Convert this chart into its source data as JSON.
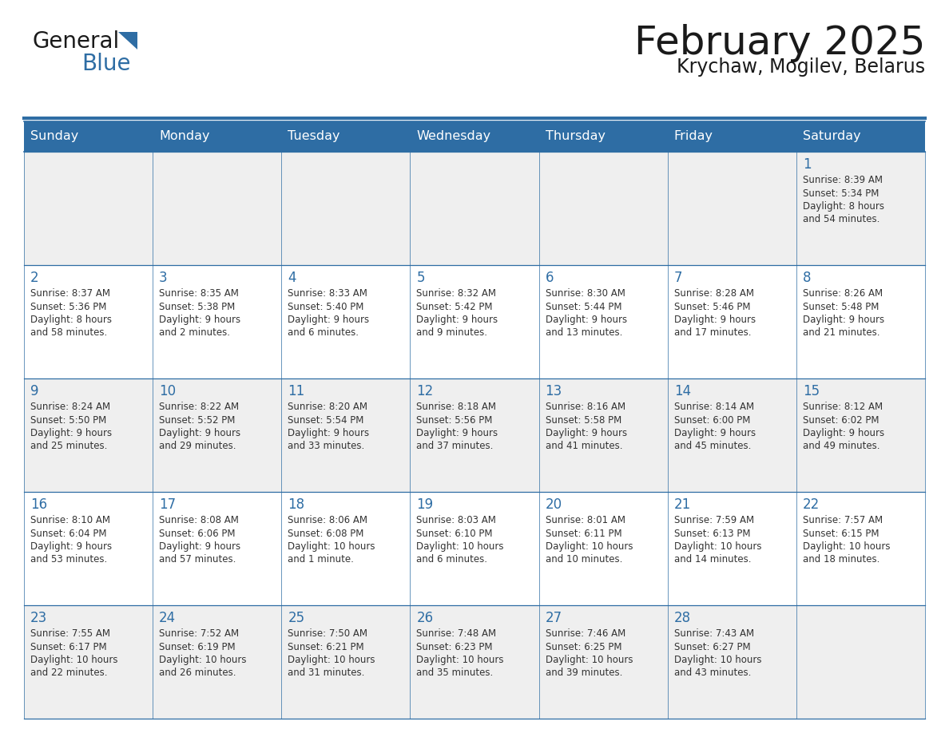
{
  "title": "February 2025",
  "subtitle": "Krychaw, Mogilev, Belarus",
  "header_bg": "#2E6DA4",
  "header_text": "#FFFFFF",
  "cell_bg_odd": "#EFEFEF",
  "cell_bg_even": "#FFFFFF",
  "border_color": "#2E6DA4",
  "days_of_week": [
    "Sunday",
    "Monday",
    "Tuesday",
    "Wednesday",
    "Thursday",
    "Friday",
    "Saturday"
  ],
  "title_color": "#1a1a1a",
  "subtitle_color": "#1a1a1a",
  "text_color": "#333333",
  "day_num_color": "#2E6DA4",
  "logo_general_color": "#1a1a1a",
  "logo_blue_color": "#2E6DA4",
  "logo_triangle_color": "#2E6DA4",
  "calendar": [
    [
      null,
      null,
      null,
      null,
      null,
      null,
      {
        "day": 1,
        "sunrise": "8:39 AM",
        "sunset": "5:34 PM",
        "daylight_h": "8 hours",
        "daylight_m": "54 minutes."
      }
    ],
    [
      {
        "day": 2,
        "sunrise": "8:37 AM",
        "sunset": "5:36 PM",
        "daylight_h": "8 hours",
        "daylight_m": "58 minutes."
      },
      {
        "day": 3,
        "sunrise": "8:35 AM",
        "sunset": "5:38 PM",
        "daylight_h": "9 hours",
        "daylight_m": "2 minutes."
      },
      {
        "day": 4,
        "sunrise": "8:33 AM",
        "sunset": "5:40 PM",
        "daylight_h": "9 hours",
        "daylight_m": "6 minutes."
      },
      {
        "day": 5,
        "sunrise": "8:32 AM",
        "sunset": "5:42 PM",
        "daylight_h": "9 hours",
        "daylight_m": "9 minutes."
      },
      {
        "day": 6,
        "sunrise": "8:30 AM",
        "sunset": "5:44 PM",
        "daylight_h": "9 hours",
        "daylight_m": "13 minutes."
      },
      {
        "day": 7,
        "sunrise": "8:28 AM",
        "sunset": "5:46 PM",
        "daylight_h": "9 hours",
        "daylight_m": "17 minutes."
      },
      {
        "day": 8,
        "sunrise": "8:26 AM",
        "sunset": "5:48 PM",
        "daylight_h": "9 hours",
        "daylight_m": "21 minutes."
      }
    ],
    [
      {
        "day": 9,
        "sunrise": "8:24 AM",
        "sunset": "5:50 PM",
        "daylight_h": "9 hours",
        "daylight_m": "25 minutes."
      },
      {
        "day": 10,
        "sunrise": "8:22 AM",
        "sunset": "5:52 PM",
        "daylight_h": "9 hours",
        "daylight_m": "29 minutes."
      },
      {
        "day": 11,
        "sunrise": "8:20 AM",
        "sunset": "5:54 PM",
        "daylight_h": "9 hours",
        "daylight_m": "33 minutes."
      },
      {
        "day": 12,
        "sunrise": "8:18 AM",
        "sunset": "5:56 PM",
        "daylight_h": "9 hours",
        "daylight_m": "37 minutes."
      },
      {
        "day": 13,
        "sunrise": "8:16 AM",
        "sunset": "5:58 PM",
        "daylight_h": "9 hours",
        "daylight_m": "41 minutes."
      },
      {
        "day": 14,
        "sunrise": "8:14 AM",
        "sunset": "6:00 PM",
        "daylight_h": "9 hours",
        "daylight_m": "45 minutes."
      },
      {
        "day": 15,
        "sunrise": "8:12 AM",
        "sunset": "6:02 PM",
        "daylight_h": "9 hours",
        "daylight_m": "49 minutes."
      }
    ],
    [
      {
        "day": 16,
        "sunrise": "8:10 AM",
        "sunset": "6:04 PM",
        "daylight_h": "9 hours",
        "daylight_m": "53 minutes."
      },
      {
        "day": 17,
        "sunrise": "8:08 AM",
        "sunset": "6:06 PM",
        "daylight_h": "9 hours",
        "daylight_m": "57 minutes."
      },
      {
        "day": 18,
        "sunrise": "8:06 AM",
        "sunset": "6:08 PM",
        "daylight_h": "10 hours",
        "daylight_m": "1 minute."
      },
      {
        "day": 19,
        "sunrise": "8:03 AM",
        "sunset": "6:10 PM",
        "daylight_h": "10 hours",
        "daylight_m": "6 minutes."
      },
      {
        "day": 20,
        "sunrise": "8:01 AM",
        "sunset": "6:11 PM",
        "daylight_h": "10 hours",
        "daylight_m": "10 minutes."
      },
      {
        "day": 21,
        "sunrise": "7:59 AM",
        "sunset": "6:13 PM",
        "daylight_h": "10 hours",
        "daylight_m": "14 minutes."
      },
      {
        "day": 22,
        "sunrise": "7:57 AM",
        "sunset": "6:15 PM",
        "daylight_h": "10 hours",
        "daylight_m": "18 minutes."
      }
    ],
    [
      {
        "day": 23,
        "sunrise": "7:55 AM",
        "sunset": "6:17 PM",
        "daylight_h": "10 hours",
        "daylight_m": "22 minutes."
      },
      {
        "day": 24,
        "sunrise": "7:52 AM",
        "sunset": "6:19 PM",
        "daylight_h": "10 hours",
        "daylight_m": "26 minutes."
      },
      {
        "day": 25,
        "sunrise": "7:50 AM",
        "sunset": "6:21 PM",
        "daylight_h": "10 hours",
        "daylight_m": "31 minutes."
      },
      {
        "day": 26,
        "sunrise": "7:48 AM",
        "sunset": "6:23 PM",
        "daylight_h": "10 hours",
        "daylight_m": "35 minutes."
      },
      {
        "day": 27,
        "sunrise": "7:46 AM",
        "sunset": "6:25 PM",
        "daylight_h": "10 hours",
        "daylight_m": "39 minutes."
      },
      {
        "day": 28,
        "sunrise": "7:43 AM",
        "sunset": "6:27 PM",
        "daylight_h": "10 hours",
        "daylight_m": "43 minutes."
      },
      null
    ]
  ]
}
